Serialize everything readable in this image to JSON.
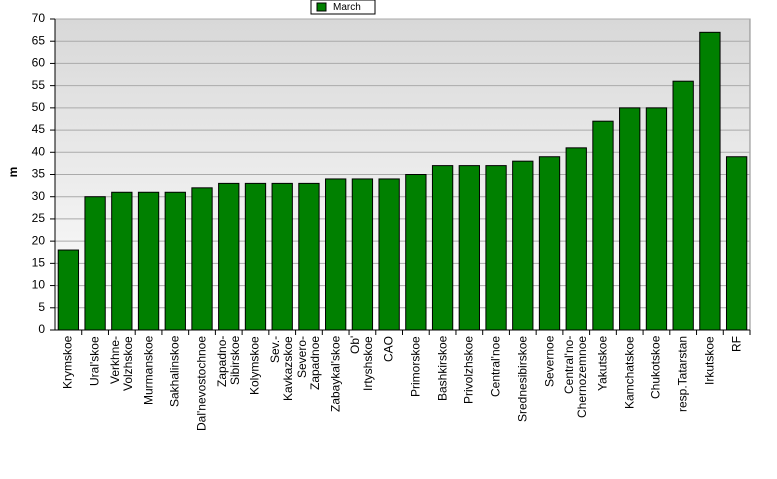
{
  "chart_data": {
    "type": "bar",
    "y_label": "m",
    "categories": [
      "Krymskoe",
      "Ural'skoe",
      "Verkhne-\nVolzhskoe",
      "Murmanskoe",
      "Sakhalinskoe",
      "Dal'nevostochnoe",
      "Zapadno-\nSibirskoe",
      "Kolymskoe",
      "Sev.-\nKavkazskoe",
      "Severo-\nZapadnoe",
      "Zabaykal'skoe",
      "Ob'\nIrtyshskoe",
      "CAO",
      "Primorskoe",
      "Bashkirskoe",
      "Privolzhskoe",
      "Central'noe",
      "Srednesibirskoe",
      "Severnoe",
      "Central'no-\nChernozemnoe",
      "Yakutskoe",
      "Kamchatskoe",
      "Chukotskoe",
      "resp.Tatarstan",
      "Irkutskoe",
      "RF"
    ],
    "series": [
      {
        "name": "March",
        "color": "#008000",
        "values": [
          18,
          30,
          31,
          31,
          31,
          32,
          33,
          33,
          33,
          33,
          34,
          34,
          34,
          35,
          37,
          37,
          37,
          38,
          39,
          41,
          47,
          50,
          50,
          56,
          67,
          39
        ]
      }
    ],
    "ylim": [
      0,
      70
    ],
    "yticks": [
      0,
      5,
      10,
      15,
      20,
      25,
      30,
      35,
      40,
      45,
      50,
      55,
      60,
      65,
      70
    ],
    "grid": true,
    "legend": "top"
  }
}
